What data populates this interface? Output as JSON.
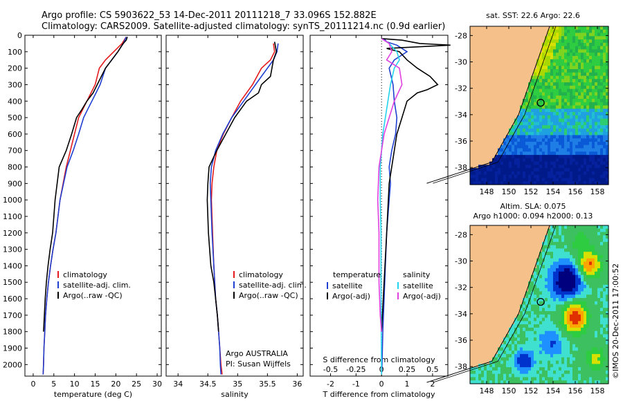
{
  "figure": {
    "title_line1": "Argo profile: CS 5903622_53 14-Dec-2011 20111218_7 33.096S 152.882E",
    "title_line2": "Climatology: CARS2009. Satellite-adjusted climatology: synTS_20111214.nc (0.9d earlier)",
    "credit": "©IMOS 20-Dec-2011 17:00:52",
    "argo_note_line1": "Argo AUSTRALIA",
    "argo_note_line2": "PI: Susan Wijffels"
  },
  "colors": {
    "climatology": "#e41a1c",
    "satellite": "#1f3fd0",
    "argo": "#000000",
    "sal_satellite": "#22d3ee",
    "sal_argo": "#e040e0",
    "land": "#f6c08a"
  },
  "chart_data": [
    {
      "type": "line",
      "id": "temperature",
      "xlabel": "temperature (deg C)",
      "ylabel": "",
      "xlim": [
        -2,
        31
      ],
      "ylim": [
        2070,
        0
      ],
      "xticks": [
        0,
        5,
        10,
        15,
        20,
        25,
        30
      ],
      "yticks": [
        0,
        100,
        200,
        300,
        400,
        500,
        600,
        700,
        800,
        900,
        1000,
        1100,
        1200,
        1300,
        1400,
        1500,
        1600,
        1700,
        1800,
        1900,
        2000
      ],
      "legend": [
        "climatology",
        "satellite-adj. clim.",
        "Argo(..raw -QC)"
      ],
      "legend_position": "lower-right",
      "series": [
        {
          "name": "climatology",
          "color_key": "climatology",
          "x": [
            22.5,
            21.5,
            19.5,
            17.5,
            16.0,
            15.0,
            14.0,
            13.0,
            12.0,
            11.0,
            10.0,
            9.0,
            8.0,
            6.5,
            5.5,
            4.8,
            4.2,
            3.7,
            3.3,
            3.0,
            2.8,
            2.6,
            2.5,
            2.4
          ],
          "y": [
            10,
            50,
            100,
            150,
            200,
            300,
            350,
            400,
            450,
            500,
            600,
            700,
            800,
            1000,
            1200,
            1300,
            1400,
            1500,
            1600,
            1700,
            1800,
            1900,
            2000,
            2060
          ]
        },
        {
          "name": "satellite-adj. clim.",
          "color_key": "satellite",
          "x": [
            22.5,
            21.8,
            20.5,
            19.0,
            17.5,
            16.2,
            15.2,
            14.2,
            13.2,
            12.2,
            11.0,
            9.7,
            8.2,
            6.5,
            5.5,
            4.8,
            4.2,
            3.7,
            3.3,
            3.0,
            2.8,
            2.6,
            2.5,
            2.4
          ],
          "y": [
            10,
            50,
            100,
            150,
            200,
            300,
            350,
            400,
            450,
            500,
            600,
            700,
            800,
            1000,
            1200,
            1300,
            1400,
            1500,
            1600,
            1700,
            1800,
            1900,
            2000,
            2060
          ]
        },
        {
          "name": "Argo(..raw -QC)",
          "color_key": "argo",
          "x": [
            22.8,
            22.5,
            21.8,
            21.5,
            20.5,
            19.0,
            17.5,
            16.5,
            15.5,
            14.5,
            13.0,
            11.8,
            10.5,
            9.3,
            8.0,
            6.3,
            5.3,
            4.7,
            4.1,
            3.6,
            3.2,
            2.9,
            2.7,
            2.5
          ],
          "y": [
            10,
            30,
            50,
            60,
            100,
            150,
            200,
            250,
            300,
            350,
            400,
            450,
            500,
            600,
            700,
            800,
            1000,
            1200,
            1300,
            1400,
            1500,
            1600,
            1700,
            1800
          ]
        }
      ]
    },
    {
      "type": "line",
      "id": "salinity",
      "xlabel": "salinity",
      "ylabel": "",
      "xlim": [
        33.8,
        36.1
      ],
      "ylim": [
        2070,
        0
      ],
      "xticks": [
        34,
        34.5,
        35,
        35.5,
        36
      ],
      "yticks": [],
      "legend": [
        "climatology",
        "satellite-adj. clim.",
        "Argo(..raw -QC)"
      ],
      "legend_position": "lower-right",
      "series": [
        {
          "name": "climatology",
          "color_key": "climatology",
          "x": [
            35.6,
            35.62,
            35.55,
            35.4,
            35.25,
            35.05,
            34.9,
            34.76,
            34.65,
            34.6,
            34.57,
            34.56,
            34.58,
            34.6,
            34.63,
            34.66,
            34.68,
            34.7,
            34.72,
            34.74
          ],
          "y": [
            50,
            100,
            150,
            200,
            300,
            400,
            500,
            600,
            700,
            800,
            900,
            1000,
            1200,
            1400,
            1600,
            1700,
            1800,
            1900,
            2000,
            2060
          ]
        },
        {
          "name": "satellite-adj. clim.",
          "color_key": "satellite",
          "x": [
            35.68,
            35.66,
            35.6,
            35.5,
            35.3,
            35.1,
            34.9,
            34.75,
            34.63,
            34.56,
            34.54,
            34.55,
            34.57,
            34.6,
            34.63,
            34.66,
            34.68,
            34.7,
            34.71,
            34.72
          ],
          "y": [
            50,
            100,
            150,
            200,
            300,
            400,
            500,
            600,
            700,
            800,
            900,
            1000,
            1200,
            1400,
            1600,
            1700,
            1800,
            1900,
            2000,
            2060
          ]
        },
        {
          "name": "Argo(..raw -QC)",
          "color_key": "argo",
          "x": [
            35.62,
            35.65,
            35.6,
            35.55,
            35.4,
            35.35,
            35.15,
            34.95,
            34.8,
            34.65,
            34.52,
            34.5,
            34.49,
            34.51,
            34.55,
            34.6,
            34.63,
            34.66,
            34.68
          ],
          "y": [
            40,
            100,
            150,
            250,
            300,
            350,
            400,
            500,
            600,
            700,
            800,
            900,
            1000,
            1200,
            1400,
            1500,
            1600,
            1700,
            1800
          ]
        }
      ]
    },
    {
      "type": "line",
      "id": "difference",
      "xlabel_top": "S difference from climatology",
      "xlabel": "T difference from climatology",
      "ylabel": "",
      "xlim": [
        -2.8,
        2.6
      ],
      "ylim": [
        2070,
        0
      ],
      "xticks_bottom": [
        -2,
        -1,
        0,
        1,
        2
      ],
      "xticks_top_labels": [
        "-0.5",
        "-0.25",
        "0",
        "0.25",
        "0.5"
      ],
      "xticks_top_positions": [
        -2,
        -1,
        0,
        1,
        2
      ],
      "yticks": [],
      "legend_left_title": "temperature",
      "legend_right_title": "salinity",
      "legend_left": [
        "satellite",
        "Argo(-adj)"
      ],
      "legend_right": [
        "satellite",
        "Argo(-adj)"
      ],
      "series": [
        {
          "name": "satellite",
          "color_key": "satellite",
          "x": [
            0.1,
            0.2,
            0.6,
            1.0,
            0.5,
            0.3,
            0.45,
            0.5,
            0.6,
            0.55,
            0.4,
            0.3,
            0.35,
            0.3,
            0.2,
            0.15,
            0.1,
            0.05,
            0.02,
            0.0
          ],
          "y": [
            20,
            40,
            60,
            100,
            150,
            200,
            300,
            400,
            500,
            600,
            700,
            800,
            900,
            1000,
            1200,
            1400,
            1600,
            1800,
            2000,
            2060
          ]
        },
        {
          "name": "Argo(-adj)",
          "color_key": "argo",
          "x": [
            0.0,
            0.8,
            1.5,
            2.7,
            0.2,
            0.7,
            1.0,
            1.4,
            1.9,
            2.2,
            1.8,
            1.4,
            1.0,
            0.8,
            0.6,
            0.5,
            0.3,
            0.2,
            0.1,
            0.0
          ],
          "y": [
            20,
            30,
            50,
            60,
            80,
            100,
            150,
            200,
            250,
            300,
            330,
            350,
            400,
            500,
            600,
            700,
            900,
            1200,
            1500,
            1800
          ]
        },
        {
          "name": "sal-satellite",
          "color_key": "sal_satellite",
          "x": [
            0.0,
            0.3,
            0.6,
            0.7,
            0.5,
            0.35,
            0.25,
            0.15,
            0.05,
            0.0,
            -0.05,
            -0.05,
            -0.02,
            -0.02,
            -0.01,
            0.0
          ],
          "y": [
            20,
            50,
            100,
            150,
            200,
            300,
            400,
            500,
            600,
            700,
            800,
            1000,
            1200,
            1500,
            1800,
            2060
          ]
        },
        {
          "name": "sal-argo",
          "color_key": "sal_argo",
          "x": [
            0.0,
            0.3,
            0.4,
            0.2,
            0.7,
            0.8,
            0.5,
            0.3,
            0.1,
            0.0,
            -0.1,
            -0.15,
            -0.1,
            -0.1,
            -0.05,
            0.0
          ],
          "y": [
            20,
            50,
            100,
            150,
            200,
            300,
            400,
            500,
            600,
            700,
            800,
            1000,
            1200,
            1500,
            1700,
            1800
          ]
        }
      ]
    },
    {
      "type": "heatmap",
      "id": "sst_map",
      "title": "sat. SST: 22.6  Argo: 22.6",
      "xlim": [
        146.5,
        159
      ],
      "ylim": [
        -39.3,
        -27.3
      ],
      "xticks": [
        148,
        150,
        152,
        154,
        156,
        158
      ],
      "yticks": [
        -28,
        -30,
        -32,
        -34,
        -36,
        -38
      ],
      "marker": {
        "lon": 152.882,
        "lat": -33.096
      }
    },
    {
      "type": "heatmap",
      "id": "sla_map",
      "title_line1": "Altim. SLA: 0.075",
      "title_line2": "Argo h1000: 0.094 h2000: 0.13",
      "xlim": [
        146.5,
        159
      ],
      "ylim": [
        -39.3,
        -27.3
      ],
      "xticks": [
        148,
        150,
        152,
        154,
        156,
        158
      ],
      "yticks": [
        -28,
        -30,
        -32,
        -34,
        -36,
        -38
      ],
      "marker": {
        "lon": 152.882,
        "lat": -33.096
      }
    }
  ]
}
